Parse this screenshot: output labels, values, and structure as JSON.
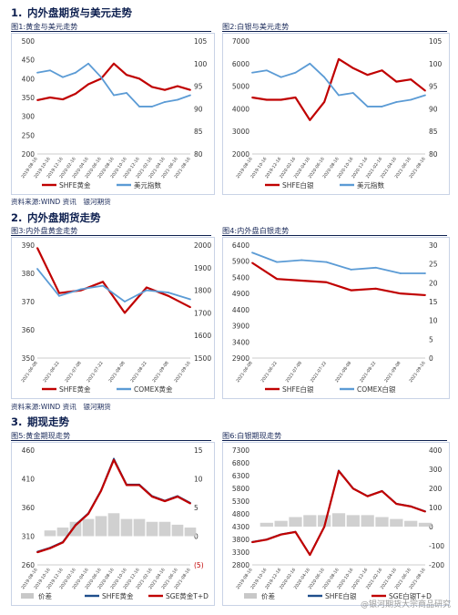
{
  "sections": [
    {
      "num": "1.",
      "title": "内外盘期货与美元走势"
    },
    {
      "num": "2.",
      "title": "内外盘期货走势"
    },
    {
      "num": "3.",
      "title": "期现走势"
    }
  ],
  "captions": [
    "图1:黄金与美元走势",
    "图2:白银与美元走势",
    "图3:内外盘黄金走势",
    "图4:内外盘白银走势",
    "图5:黄金期现走势",
    "图6:白银期现走势"
  ],
  "sources": [
    "资料来源:WIND 资讯　银河期货",
    "资料来源:WIND 资讯　银河期货"
  ],
  "watermark": "@银河期货大宗商品研究",
  "colors": {
    "red": "#c00000",
    "blue": "#5b9bd5",
    "navy": "#1f4e8c",
    "grey": "#c8c8c8"
  },
  "chart_data": [
    {
      "type": "line",
      "title": "图1:黄金与美元走势",
      "x": [
        "2019-08-16",
        "2019-10-16",
        "2019-12-16",
        "2020-02-16",
        "2020-04-16",
        "2020-06-16",
        "2020-08-16",
        "2020-10-16",
        "2020-12-16",
        "2021-02-16",
        "2021-04-16",
        "2021-06-16",
        "2021-08-16"
      ],
      "ylim_left": [
        200,
        500
      ],
      "yticks_left": [
        200,
        250,
        300,
        350,
        400,
        450,
        500
      ],
      "ylim_right": [
        80,
        105
      ],
      "yticks_right": [
        80,
        85,
        90,
        95,
        100,
        105
      ],
      "series": [
        {
          "name": "SHFE黄金",
          "axis": "left",
          "color": "#c00000",
          "values": [
            343,
            350,
            345,
            360,
            385,
            400,
            440,
            410,
            400,
            378,
            370,
            380,
            370
          ]
        },
        {
          "name": "美元指数",
          "axis": "right",
          "color": "#5b9bd5",
          "values": [
            98,
            98.5,
            97,
            98,
            100,
            97,
            93,
            93.5,
            90.5,
            90.5,
            91.5,
            92,
            93
          ]
        }
      ]
    },
    {
      "type": "line",
      "title": "图2:白银与美元走势",
      "x": [
        "2019-08-16",
        "2019-10-16",
        "2019-12-16",
        "2020-02-16",
        "2020-04-16",
        "2020-06-16",
        "2020-08-16",
        "2020-10-16",
        "2020-12-16",
        "2021-02-16",
        "2021-04-16",
        "2021-06-16",
        "2021-08-16"
      ],
      "ylim_left": [
        2000,
        7000
      ],
      "yticks_left": [
        2000,
        3000,
        4000,
        5000,
        6000,
        7000
      ],
      "ylim_right": [
        80,
        105
      ],
      "yticks_right": [
        80,
        85,
        90,
        95,
        100,
        105
      ],
      "series": [
        {
          "name": "SHFE白银",
          "axis": "left",
          "color": "#c00000",
          "values": [
            4500,
            4400,
            4400,
            4500,
            3500,
            4300,
            6200,
            5800,
            5500,
            5700,
            5200,
            5300,
            4800
          ]
        },
        {
          "name": "美元指数",
          "axis": "right",
          "color": "#5b9bd5",
          "values": [
            98,
            98.5,
            97,
            98,
            100,
            97,
            93,
            93.5,
            90.5,
            90.5,
            91.5,
            92,
            93
          ]
        }
      ]
    },
    {
      "type": "line",
      "title": "图3:内外盘黄金走势",
      "x": [
        "2021-06-08",
        "2021-06-22",
        "2021-07-08",
        "2021-07-22",
        "2021-08-08",
        "2021-08-22",
        "2021-09-08",
        "2021-09-16"
      ],
      "ylim_left": [
        350,
        390
      ],
      "yticks_left": [
        350,
        360,
        370,
        380,
        390
      ],
      "ylim_right": [
        1500,
        2000
      ],
      "yticks_right": [
        1500,
        1600,
        1700,
        1800,
        1900,
        2000
      ],
      "series": [
        {
          "name": "SHFE黄金",
          "axis": "left",
          "color": "#c00000",
          "values": [
            389,
            373,
            374,
            377,
            366,
            375,
            372,
            368
          ]
        },
        {
          "name": "COMEX黄金",
          "axis": "right",
          "color": "#5b9bd5",
          "values": [
            1895,
            1775,
            1805,
            1820,
            1750,
            1800,
            1790,
            1760
          ]
        }
      ]
    },
    {
      "type": "line",
      "title": "图4:内外盘白银走势",
      "x": [
        "2021-06-08",
        "2021-06-22",
        "2021-07-08",
        "2021-07-22",
        "2021-08-08",
        "2021-08-22",
        "2021-09-08",
        "2021-09-16"
      ],
      "ylim_left": [
        2900,
        6400
      ],
      "yticks_left": [
        2900,
        3400,
        3900,
        4400,
        4900,
        5400,
        5900,
        6400
      ],
      "ylim_right": [
        0,
        30
      ],
      "yticks_right": [
        0,
        5,
        10,
        15,
        20,
        25,
        30
      ],
      "series": [
        {
          "name": "SHFE白银",
          "axis": "left",
          "color": "#c00000",
          "values": [
            5850,
            5350,
            5300,
            5250,
            5000,
            5050,
            4900,
            4850
          ]
        },
        {
          "name": "COMEX白银",
          "axis": "right",
          "color": "#5b9bd5",
          "values": [
            28,
            25.5,
            26,
            25.5,
            23.5,
            24,
            22.5,
            22.5
          ]
        }
      ]
    },
    {
      "type": "line",
      "title": "图5:黄金期现走势",
      "x": [
        "2019-08-16",
        "2019-10-16",
        "2019-12-16",
        "2020-02-16",
        "2020-04-16",
        "2020-06-16",
        "2020-08-16",
        "2020-10-16",
        "2020-12-16",
        "2021-02-16",
        "2021-04-16",
        "2021-06-16",
        "2021-08-16"
      ],
      "ylim_left": [
        260,
        460
      ],
      "yticks_left": [
        260,
        310,
        360,
        410,
        460
      ],
      "ylim_right": [
        -5,
        15
      ],
      "yticks_right": [
        "(5)",
        "0",
        "5",
        "10",
        "15"
      ],
      "series": [
        {
          "name": "价差",
          "axis": "right",
          "color": "#c8c8c8",
          "values": [
            0,
            1,
            1.5,
            2.5,
            3,
            3.5,
            4,
            3,
            3,
            2.5,
            2.5,
            2,
            1.5
          ]
        },
        {
          "name": "SHFE黄金",
          "axis": "left",
          "color": "#1f4e8c",
          "values": [
            283,
            290,
            300,
            330,
            350,
            390,
            445,
            400,
            400,
            380,
            372,
            380,
            368
          ]
        },
        {
          "name": "SGE黄金T+D",
          "axis": "left",
          "color": "#c00000",
          "values": [
            282,
            289,
            299,
            329,
            349,
            389,
            443,
            399,
            399,
            379,
            371,
            379,
            367
          ]
        }
      ]
    },
    {
      "type": "line",
      "title": "图6:白银期现走势",
      "x": [
        "2019-08-16",
        "2019-10-16",
        "2019-12-16",
        "2020-02-16",
        "2020-04-16",
        "2020-06-16",
        "2020-08-16",
        "2020-10-16",
        "2020-12-16",
        "2021-02-16",
        "2021-04-16",
        "2021-06-16",
        "2021-08-16"
      ],
      "ylim_left": [
        2800,
        7300
      ],
      "yticks_left": [
        2800,
        3300,
        3800,
        4300,
        4800,
        5300,
        5800,
        6300,
        6800,
        7300
      ],
      "ylim_right": [
        -200,
        400
      ],
      "yticks_right": [
        -200,
        -100,
        0,
        100,
        200,
        300,
        400
      ],
      "series": [
        {
          "name": "价差",
          "axis": "right",
          "color": "#c8c8c8",
          "values": [
            0,
            20,
            30,
            50,
            60,
            60,
            70,
            60,
            60,
            50,
            40,
            30,
            20
          ]
        },
        {
          "name": "SHFE白银",
          "axis": "left",
          "color": "#1f4e8c",
          "values": [
            3700,
            3800,
            4000,
            4100,
            3200,
            4300,
            6500,
            5800,
            5500,
            5700,
            5200,
            5100,
            4900
          ]
        },
        {
          "name": "SGE白银T+D",
          "axis": "left",
          "color": "#c00000",
          "values": [
            3690,
            3790,
            3990,
            4090,
            3190,
            4290,
            6480,
            5790,
            5490,
            5690,
            5190,
            5090,
            4890
          ]
        }
      ]
    }
  ]
}
